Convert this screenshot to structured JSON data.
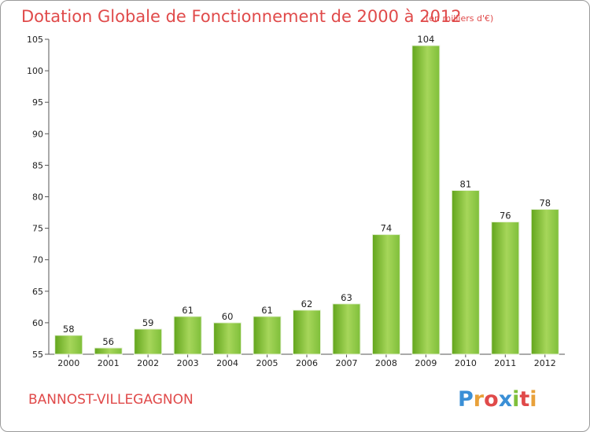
{
  "chart_data": {
    "type": "bar",
    "title": "Dotation Globale de Fonctionnement de 2000 à 2012",
    "subtitle": "(en milliers d'€)",
    "categories": [
      "2000",
      "2001",
      "2002",
      "2003",
      "2004",
      "2005",
      "2006",
      "2007",
      "2008",
      "2009",
      "2010",
      "2011",
      "2012"
    ],
    "values": [
      58,
      56,
      59,
      61,
      60,
      61,
      62,
      63,
      74,
      104,
      81,
      76,
      78
    ],
    "xlabel": "",
    "ylabel": "",
    "ylim": [
      55,
      105
    ],
    "yticks": [
      55,
      60,
      65,
      70,
      75,
      80,
      85,
      90,
      95,
      100,
      105
    ],
    "grid": false,
    "bar_color": "#7fbf3a",
    "bar_color_light": "#a6d65a",
    "bar_color_dark": "#62a51c"
  },
  "footer": {
    "commune": "BANNOST-VILLEGAGNON",
    "logo_text": "Proxiti"
  },
  "colors": {
    "title": "#e04a4a",
    "logo_letters": [
      "#3a8fd6",
      "#e8a13a",
      "#e04a4a",
      "#3a8fd6",
      "#7fbf3a",
      "#e04a4a",
      "#e8a13a"
    ]
  }
}
